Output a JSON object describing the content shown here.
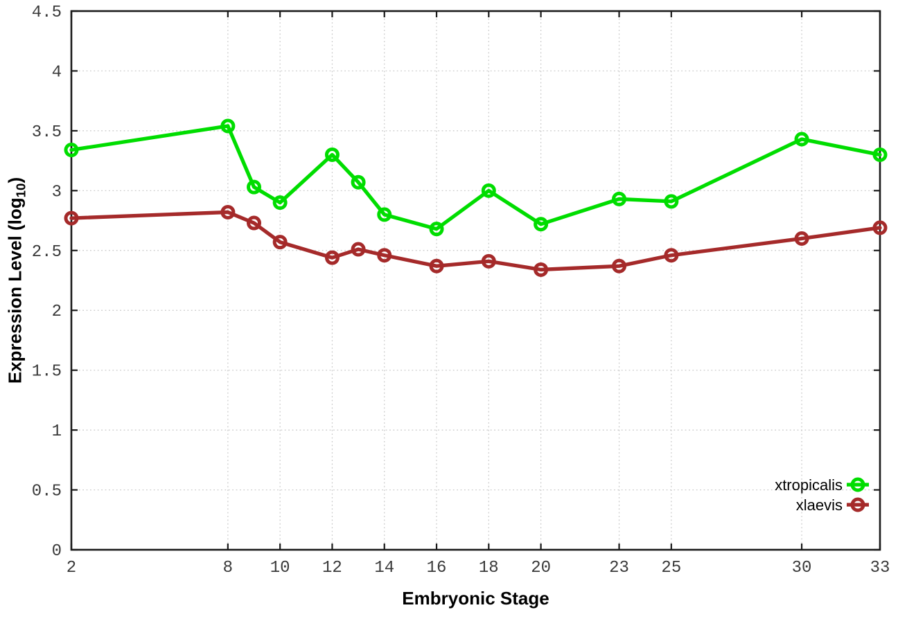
{
  "chart_data": {
    "type": "line",
    "title": "",
    "xlabel": "Embryonic Stage",
    "ylabel": {
      "main": "Expression Level (log",
      "sub": "10",
      "close": ")"
    },
    "x": [
      2,
      8,
      9,
      10,
      12,
      13,
      14,
      16,
      18,
      20,
      23,
      25,
      30,
      33
    ],
    "xlim": [
      2,
      33
    ],
    "ylim": [
      0,
      4.5
    ],
    "xtick_values": [
      2,
      8,
      10,
      12,
      14,
      16,
      18,
      20,
      23,
      25,
      30,
      33
    ],
    "xtick_labels": [
      "2",
      "8",
      "10",
      "12",
      "14",
      "16",
      "18",
      "20",
      "23",
      "25",
      "30",
      "33"
    ],
    "ytick_values": [
      0,
      0.5,
      1,
      1.5,
      2,
      2.5,
      3,
      3.5,
      4,
      4.5
    ],
    "ytick_labels": [
      "0",
      "0.5",
      "1",
      "1.5",
      "2",
      "2.5",
      "3",
      "3.5",
      "4",
      "4.5"
    ],
    "grid": true,
    "legend_position": "inside-bottom-right",
    "series": [
      {
        "name": "xtropicalis",
        "color": "#00dd00",
        "marker": "open-circle",
        "values": [
          3.34,
          3.54,
          3.03,
          2.9,
          3.3,
          3.07,
          2.8,
          2.68,
          3.0,
          2.72,
          2.93,
          2.91,
          3.43,
          3.3
        ]
      },
      {
        "name": "xlaevis",
        "color": "#a52a2a",
        "marker": "open-circle",
        "values": [
          2.77,
          2.82,
          2.73,
          2.57,
          2.44,
          2.51,
          2.46,
          2.37,
          2.41,
          2.34,
          2.37,
          2.46,
          2.6,
          2.69
        ]
      }
    ],
    "style": {
      "grid_color": "#c6c6c6",
      "axis_color": "#1a1a1a",
      "tick_text_color": "#3a3a3a",
      "background": "#ffffff"
    }
  }
}
